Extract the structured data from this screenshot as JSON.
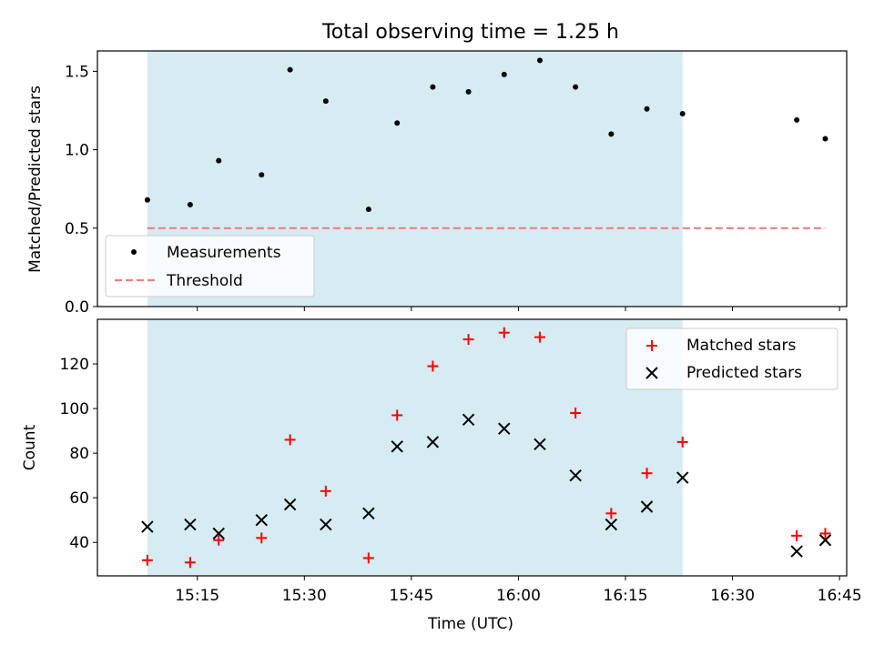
{
  "figure": {
    "title": "Total observing time = 1.25 h",
    "xlabel": "Time (UTC)",
    "xticks": [
      {
        "t": 15.25,
        "label": "15:15"
      },
      {
        "t": 15.5,
        "label": "15:30"
      },
      {
        "t": 15.75,
        "label": "15:45"
      },
      {
        "t": 16.0,
        "label": "16:00"
      },
      {
        "t": 16.25,
        "label": "16:15"
      },
      {
        "t": 16.5,
        "label": "16:30"
      },
      {
        "t": 16.75,
        "label": "16:45"
      }
    ],
    "xlim": [
      "15:01",
      "16:46"
    ],
    "shaded_interval": [
      "15:08",
      "16:23"
    ],
    "colors": {
      "shade": "#add8e6",
      "threshold": "#f08080",
      "matched": "#ff0000",
      "predicted": "#000000"
    }
  },
  "chart_data": [
    {
      "type": "scatter",
      "ylabel": "Matched/Predicted stars",
      "ylim": [
        0,
        1.63
      ],
      "yticks": [
        "0.0",
        "0.5",
        "1.0",
        "1.5"
      ],
      "legend_position": "lower-left",
      "grid": false,
      "series": [
        {
          "name": "Measurements",
          "x": [
            "15:08",
            "15:14",
            "15:18",
            "15:24",
            "15:28",
            "15:33",
            "15:39",
            "15:43",
            "15:48",
            "15:53",
            "15:58",
            "16:03",
            "16:08",
            "16:13",
            "16:18",
            "16:23",
            "16:39",
            "16:43"
          ],
          "y": [
            0.68,
            0.65,
            0.93,
            0.84,
            1.51,
            1.31,
            0.62,
            1.17,
            1.4,
            1.37,
            1.48,
            1.57,
            1.4,
            1.1,
            1.26,
            1.23,
            1.19,
            1.07
          ]
        },
        {
          "name": "Threshold",
          "x": [
            "15:08",
            "16:43"
          ],
          "y": [
            0.5,
            0.5
          ]
        }
      ]
    },
    {
      "type": "scatter",
      "ylabel": "Count",
      "ylim": [
        25,
        140
      ],
      "yticks": [
        "40",
        "60",
        "80",
        "100",
        "120"
      ],
      "legend_position": "upper-right",
      "grid": false,
      "x": [
        "15:08",
        "15:14",
        "15:18",
        "15:24",
        "15:28",
        "15:33",
        "15:39",
        "15:43",
        "15:48",
        "15:53",
        "15:58",
        "16:03",
        "16:08",
        "16:13",
        "16:18",
        "16:23",
        "16:39",
        "16:43"
      ],
      "series": [
        {
          "name": "Matched stars",
          "values": [
            32,
            31,
            41,
            42,
            86,
            63,
            33,
            97,
            119,
            131,
            134,
            132,
            98,
            53,
            71,
            85,
            43,
            44
          ]
        },
        {
          "name": "Predicted stars",
          "values": [
            47,
            48,
            44,
            50,
            57,
            48,
            53,
            83,
            85,
            95,
            91,
            84,
            70,
            48,
            56,
            69,
            36,
            41
          ]
        }
      ]
    }
  ]
}
